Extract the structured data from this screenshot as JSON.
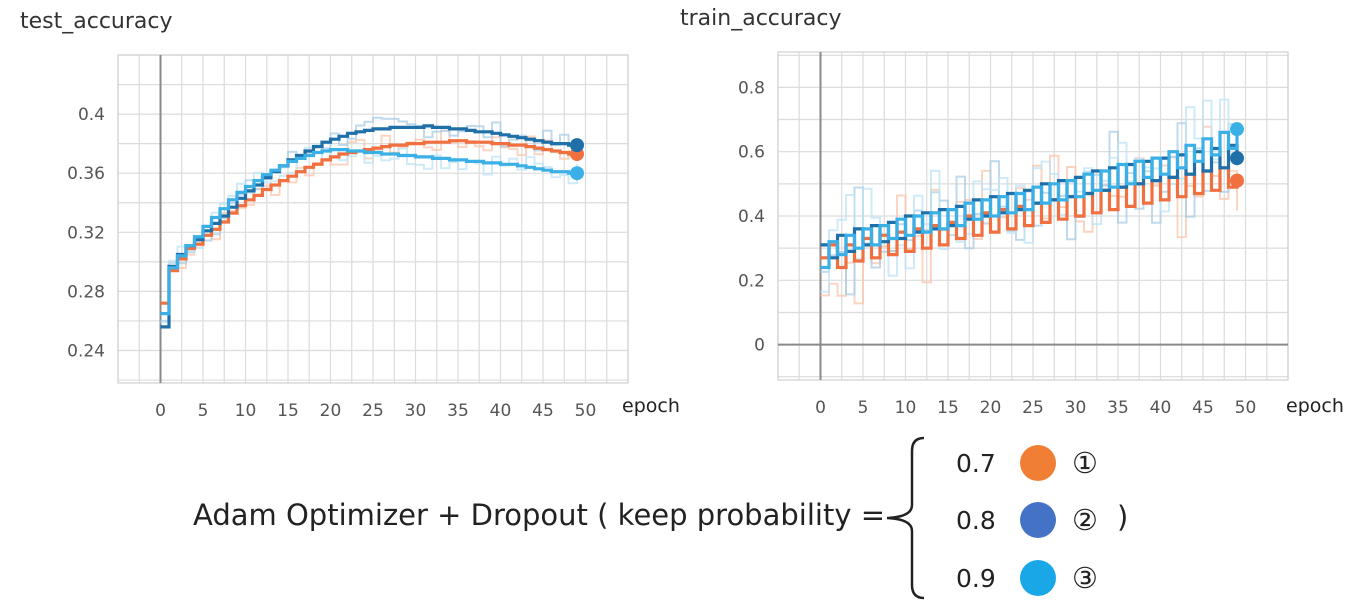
{
  "chart_data": [
    {
      "type": "line",
      "title": "test_accuracy",
      "xlabel": "epoch",
      "ylabel": "",
      "xlim": [
        -5,
        55
      ],
      "ylim": [
        0.218,
        0.44
      ],
      "xticks": [
        0,
        5,
        10,
        15,
        20,
        25,
        30,
        35,
        40,
        45,
        50
      ],
      "yticks": [
        0.24,
        0.28,
        0.32,
        0.36,
        0.4
      ],
      "ytick_labels": [
        "0.24",
        "0.28",
        "0.32",
        "0.36",
        "0.4"
      ],
      "grid": true,
      "series": [
        {
          "color": "#f07040",
          "ghost": "#f9c6ae",
          "x": [
            0,
            1,
            2,
            3,
            4,
            5,
            6,
            7,
            8,
            9,
            10,
            11,
            12,
            13,
            14,
            15,
            16,
            17,
            18,
            19,
            20,
            21,
            22,
            23,
            24,
            25,
            26,
            27,
            28,
            29,
            30,
            31,
            32,
            33,
            34,
            35,
            36,
            37,
            38,
            39,
            40,
            41,
            42,
            43,
            44,
            45,
            46,
            47,
            48,
            49
          ],
          "values": [
            0.272,
            0.294,
            0.302,
            0.309,
            0.312,
            0.318,
            0.322,
            0.327,
            0.333,
            0.338,
            0.342,
            0.345,
            0.349,
            0.352,
            0.355,
            0.358,
            0.361,
            0.364,
            0.366,
            0.369,
            0.371,
            0.373,
            0.374,
            0.375,
            0.376,
            0.377,
            0.378,
            0.379,
            0.379,
            0.38,
            0.38,
            0.381,
            0.381,
            0.381,
            0.382,
            0.382,
            0.381,
            0.381,
            0.381,
            0.38,
            0.38,
            0.379,
            0.379,
            0.378,
            0.377,
            0.376,
            0.375,
            0.374,
            0.373,
            0.373
          ]
        },
        {
          "color": "#1f6fa8",
          "ghost": "#a9cde6",
          "x": [
            0,
            1,
            2,
            3,
            4,
            5,
            6,
            7,
            8,
            9,
            10,
            11,
            12,
            13,
            14,
            15,
            16,
            17,
            18,
            19,
            20,
            21,
            22,
            23,
            24,
            25,
            26,
            27,
            28,
            29,
            30,
            31,
            32,
            33,
            34,
            35,
            36,
            37,
            38,
            39,
            40,
            41,
            42,
            43,
            44,
            45,
            46,
            47,
            48,
            49
          ],
          "values": [
            0.256,
            0.297,
            0.305,
            0.311,
            0.315,
            0.321,
            0.326,
            0.331,
            0.337,
            0.343,
            0.348,
            0.352,
            0.357,
            0.361,
            0.365,
            0.369,
            0.372,
            0.375,
            0.378,
            0.381,
            0.383,
            0.385,
            0.387,
            0.388,
            0.389,
            0.39,
            0.39,
            0.391,
            0.391,
            0.391,
            0.391,
            0.392,
            0.391,
            0.391,
            0.39,
            0.39,
            0.389,
            0.388,
            0.388,
            0.387,
            0.386,
            0.385,
            0.384,
            0.383,
            0.382,
            0.381,
            0.38,
            0.38,
            0.379,
            0.379
          ]
        },
        {
          "color": "#3ab0e6",
          "ghost": "#bfe3f6",
          "x": [
            0,
            1,
            2,
            3,
            4,
            5,
            6,
            7,
            8,
            9,
            10,
            11,
            12,
            13,
            14,
            15,
            16,
            17,
            18,
            19,
            20,
            21,
            22,
            23,
            24,
            25,
            26,
            27,
            28,
            29,
            30,
            31,
            32,
            33,
            34,
            35,
            36,
            37,
            38,
            39,
            40,
            41,
            42,
            43,
            44,
            45,
            46,
            47,
            48,
            49
          ],
          "values": [
            0.265,
            0.296,
            0.304,
            0.311,
            0.317,
            0.324,
            0.33,
            0.336,
            0.342,
            0.347,
            0.351,
            0.355,
            0.359,
            0.362,
            0.365,
            0.368,
            0.37,
            0.372,
            0.374,
            0.375,
            0.376,
            0.376,
            0.375,
            0.375,
            0.374,
            0.374,
            0.373,
            0.373,
            0.372,
            0.372,
            0.371,
            0.371,
            0.37,
            0.37,
            0.369,
            0.369,
            0.368,
            0.368,
            0.367,
            0.367,
            0.366,
            0.366,
            0.365,
            0.364,
            0.363,
            0.362,
            0.361,
            0.361,
            0.36,
            0.36
          ]
        }
      ]
    },
    {
      "type": "line",
      "title": "train_accuracy",
      "xlabel": "epoch",
      "ylabel": "",
      "xlim": [
        -5,
        55
      ],
      "ylim": [
        -0.11,
        0.91
      ],
      "xticks": [
        0,
        5,
        10,
        15,
        20,
        25,
        30,
        35,
        40,
        45,
        50
      ],
      "yticks": [
        0,
        0.2,
        0.4,
        0.6,
        0.8
      ],
      "ytick_labels": [
        "0",
        "0.2",
        "0.4",
        "0.6",
        "0.8"
      ],
      "grid": true,
      "series": [
        {
          "color": "#f07040",
          "ghost": "#f9c6ae",
          "x": [
            0,
            1,
            2,
            3,
            4,
            5,
            6,
            7,
            8,
            9,
            10,
            11,
            12,
            13,
            14,
            15,
            16,
            17,
            18,
            19,
            20,
            21,
            22,
            23,
            24,
            25,
            26,
            27,
            28,
            29,
            30,
            31,
            32,
            33,
            34,
            35,
            36,
            37,
            38,
            39,
            40,
            41,
            42,
            43,
            44,
            45,
            46,
            47,
            48,
            49
          ],
          "values": [
            0.27,
            0.31,
            0.24,
            0.31,
            0.26,
            0.33,
            0.27,
            0.34,
            0.28,
            0.35,
            0.29,
            0.36,
            0.3,
            0.37,
            0.31,
            0.38,
            0.33,
            0.4,
            0.34,
            0.41,
            0.35,
            0.42,
            0.36,
            0.43,
            0.37,
            0.44,
            0.38,
            0.45,
            0.39,
            0.46,
            0.4,
            0.47,
            0.41,
            0.48,
            0.42,
            0.49,
            0.43,
            0.5,
            0.44,
            0.51,
            0.45,
            0.52,
            0.46,
            0.53,
            0.47,
            0.54,
            0.48,
            0.55,
            0.49,
            0.51
          ]
        },
        {
          "color": "#1f6fa8",
          "ghost": "#a9cde6",
          "x": [
            0,
            1,
            2,
            3,
            4,
            5,
            6,
            7,
            8,
            9,
            10,
            11,
            12,
            13,
            14,
            15,
            16,
            17,
            18,
            19,
            20,
            21,
            22,
            23,
            24,
            25,
            26,
            27,
            28,
            29,
            30,
            31,
            32,
            33,
            34,
            35,
            36,
            37,
            38,
            39,
            40,
            41,
            42,
            43,
            44,
            45,
            46,
            47,
            48,
            49
          ],
          "values": [
            0.31,
            0.27,
            0.34,
            0.29,
            0.36,
            0.31,
            0.37,
            0.32,
            0.38,
            0.33,
            0.4,
            0.35,
            0.41,
            0.36,
            0.42,
            0.37,
            0.43,
            0.39,
            0.45,
            0.4,
            0.46,
            0.41,
            0.47,
            0.42,
            0.48,
            0.44,
            0.5,
            0.45,
            0.51,
            0.46,
            0.52,
            0.47,
            0.54,
            0.48,
            0.55,
            0.49,
            0.56,
            0.5,
            0.57,
            0.51,
            0.58,
            0.52,
            0.59,
            0.53,
            0.6,
            0.54,
            0.61,
            0.55,
            0.62,
            0.58
          ]
        },
        {
          "color": "#3ab0e6",
          "ghost": "#bfe3f6",
          "x": [
            0,
            1,
            2,
            3,
            4,
            5,
            6,
            7,
            8,
            9,
            10,
            11,
            12,
            13,
            14,
            15,
            16,
            17,
            18,
            19,
            20,
            21,
            22,
            23,
            24,
            25,
            26,
            27,
            28,
            29,
            30,
            31,
            32,
            33,
            34,
            35,
            36,
            37,
            38,
            39,
            40,
            41,
            42,
            43,
            44,
            45,
            46,
            47,
            48,
            49
          ],
          "values": [
            0.24,
            0.32,
            0.28,
            0.34,
            0.3,
            0.36,
            0.31,
            0.37,
            0.33,
            0.39,
            0.34,
            0.4,
            0.35,
            0.41,
            0.36,
            0.42,
            0.37,
            0.44,
            0.39,
            0.45,
            0.4,
            0.46,
            0.41,
            0.47,
            0.42,
            0.49,
            0.44,
            0.5,
            0.45,
            0.51,
            0.46,
            0.53,
            0.48,
            0.54,
            0.49,
            0.56,
            0.5,
            0.57,
            0.52,
            0.58,
            0.53,
            0.6,
            0.55,
            0.62,
            0.57,
            0.64,
            0.59,
            0.66,
            0.61,
            0.67
          ]
        }
      ]
    }
  ],
  "caption": "Adam Optimizer + Dropout ( keep probability = ",
  "close_paren": ")",
  "legend": [
    {
      "value": "0.7",
      "color": "#f07f35",
      "number": "①"
    },
    {
      "value": "0.8",
      "color": "#4472c4",
      "number": "②"
    },
    {
      "value": "0.9",
      "color": "#1aa7e8",
      "number": "③"
    }
  ]
}
